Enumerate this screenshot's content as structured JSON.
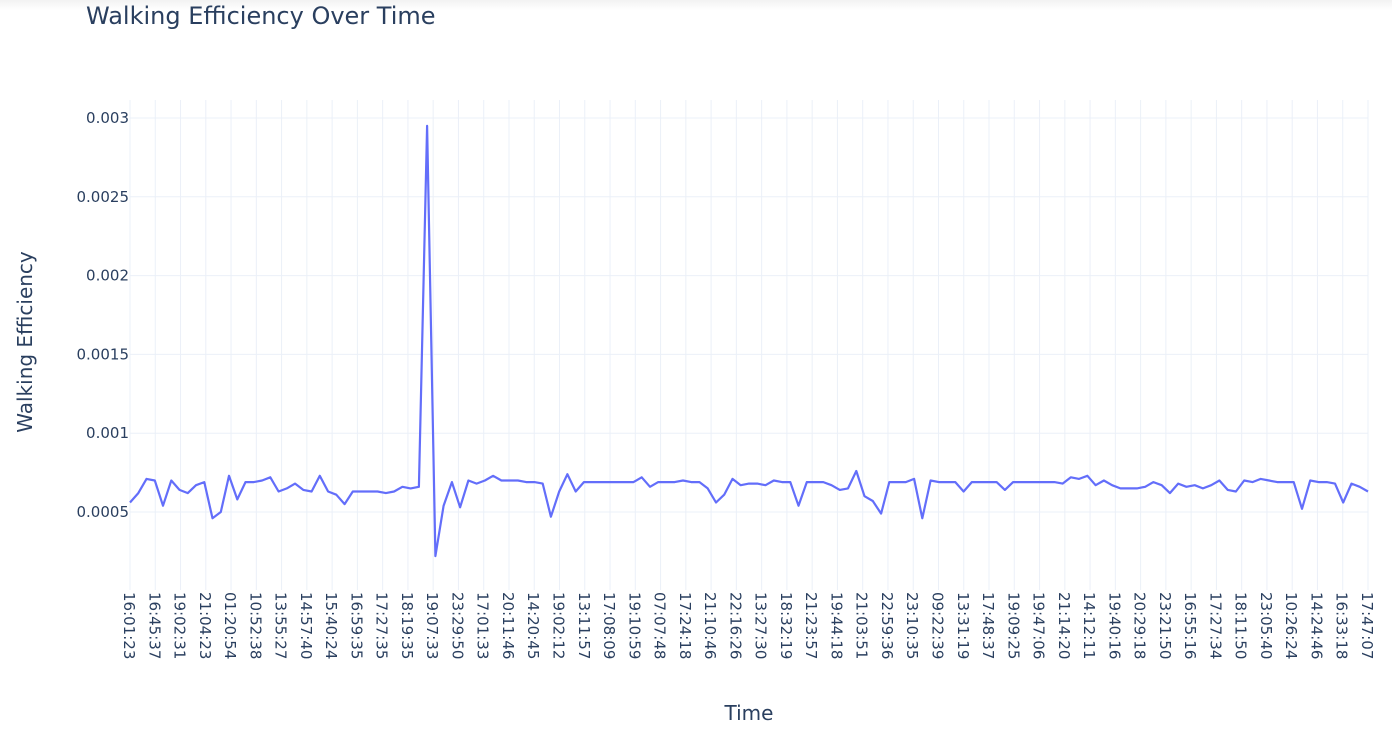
{
  "chart_data": {
    "type": "line",
    "title": "Walking Efficiency Over Time",
    "xlabel": "Time",
    "ylabel": "Walking Efficiency",
    "ylim": [
      0,
      0.003
    ],
    "y_ticks": [
      0.0005,
      0.001,
      0.0015,
      0.002,
      0.0025,
      0.003
    ],
    "y_tick_labels": [
      "0.0005",
      "0.001",
      "0.0015",
      "0.002",
      "0.0025",
      "0.003"
    ],
    "x_tick_labels": [
      "16:01:23",
      "16:45:37",
      "19:02:31",
      "21:04:23",
      "01:20:54",
      "10:52:38",
      "13:55:27",
      "14:57:40",
      "15:40:24",
      "16:59:35",
      "17:27:35",
      "18:19:35",
      "19:07:33",
      "23:29:50",
      "17:01:33",
      "20:11:46",
      "14:20:45",
      "19:02:12",
      "13:11:57",
      "17:08:09",
      "19:10:59",
      "07:07:48",
      "17:24:18",
      "21:10:46",
      "22:16:26",
      "13:27:30",
      "18:32:19",
      "21:23:57",
      "19:44:18",
      "21:03:51",
      "22:59:36",
      "23:10:35",
      "09:22:39",
      "13:31:19",
      "17:48:37",
      "19:09:25",
      "19:47:06",
      "21:14:20",
      "14:12:11",
      "19:40:16",
      "20:29:18",
      "23:21:50",
      "16:55:16",
      "17:27:34",
      "18:11:50",
      "23:05:40",
      "10:26:24",
      "14:24:46",
      "16:33:18",
      "17:47:07"
    ],
    "grid": true,
    "colors": {
      "line": "#636efa",
      "grid": "#ebf0f8",
      "text": "#2a3f5f"
    },
    "series": [
      {
        "values": [
          0.00056,
          0.00062,
          0.00071,
          0.0007,
          0.00054,
          0.0007,
          0.00064,
          0.00062,
          0.00067,
          0.00069,
          0.00046,
          0.0005,
          0.00073,
          0.00058,
          0.00069,
          0.00069,
          0.0007,
          0.00072,
          0.00063,
          0.00065,
          0.00068,
          0.00064,
          0.00063,
          0.00073,
          0.00063,
          0.00061,
          0.00055,
          0.00063,
          0.00063,
          0.00063,
          0.00063,
          0.00062,
          0.00063,
          0.00066,
          0.00065,
          0.00066,
          0.00295,
          0.00022,
          0.00054,
          0.00069,
          0.00053,
          0.0007,
          0.00068,
          0.0007,
          0.00073,
          0.0007,
          0.0007,
          0.0007,
          0.00069,
          0.00069,
          0.00068,
          0.00047,
          0.00063,
          0.00074,
          0.00063,
          0.00069,
          0.00069,
          0.00069,
          0.00069,
          0.00069,
          0.00069,
          0.00069,
          0.00072,
          0.00066,
          0.00069,
          0.00069,
          0.00069,
          0.0007,
          0.00069,
          0.00069,
          0.00065,
          0.00056,
          0.00061,
          0.00071,
          0.00067,
          0.00068,
          0.00068,
          0.00067,
          0.0007,
          0.00069,
          0.00069,
          0.00054,
          0.00069,
          0.00069,
          0.00069,
          0.00067,
          0.00064,
          0.00065,
          0.00076,
          0.0006,
          0.00057,
          0.00049,
          0.00069,
          0.00069,
          0.00069,
          0.00071,
          0.00046,
          0.0007,
          0.00069,
          0.00069,
          0.00069,
          0.00063,
          0.00069,
          0.00069,
          0.00069,
          0.00069,
          0.00064,
          0.00069,
          0.00069,
          0.00069,
          0.00069,
          0.00069,
          0.00069,
          0.00068,
          0.00072,
          0.00071,
          0.00073,
          0.00067,
          0.0007,
          0.00067,
          0.00065,
          0.00065,
          0.00065,
          0.00066,
          0.00069,
          0.00067,
          0.00062,
          0.00068,
          0.00066,
          0.00067,
          0.00065,
          0.00067,
          0.0007,
          0.00064,
          0.00063,
          0.0007,
          0.00069,
          0.00071,
          0.0007,
          0.00069,
          0.00069,
          0.00069,
          0.00052,
          0.0007,
          0.00069,
          0.00069,
          0.00068,
          0.00056,
          0.00068,
          0.00066,
          0.00063
        ]
      }
    ]
  }
}
